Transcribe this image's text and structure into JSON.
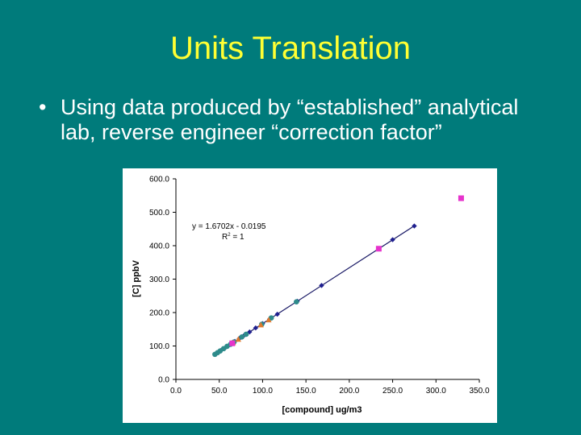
{
  "slide": {
    "title": "Units Translation",
    "bullets": [
      "Using data produced by “established” analytical lab, reverse engineer “correction factor”"
    ],
    "bullet_symbol": "•",
    "colors": {
      "background": "#007b7b",
      "title": "#ffff33",
      "text": "#ffffff"
    }
  },
  "chart_data": {
    "type": "scatter",
    "xlabel": "[compound] ug/m3",
    "ylabel": "[C] ppbV",
    "xlim": [
      0,
      350
    ],
    "ylim": [
      0,
      600
    ],
    "x_ticks": [
      "0.0",
      "50.0",
      "100.0",
      "150.0",
      "200.0",
      "250.0",
      "300.0",
      "350.0"
    ],
    "y_ticks": [
      "0.0",
      "100.0",
      "200.0",
      "300.0",
      "400.0",
      "500.0",
      "600.0"
    ],
    "grid": false,
    "trendline": {
      "slope": 1.6702,
      "intercept": -0.0195,
      "x_range": [
        44,
        275
      ],
      "color": "#1a1a66"
    },
    "annotation": {
      "equation": "y = 1.6702x - 0.0195",
      "r2_prefix": "R",
      "r2_sup": "2",
      "r2_value": " = 1"
    },
    "series": [
      {
        "marker": "diamond",
        "color": "#1f1f8f",
        "x": [
          46,
          52,
          57,
          62,
          68,
          73,
          78,
          85,
          92,
          100,
          108,
          117,
          140,
          168,
          250,
          275
        ],
        "y": [
          77,
          87,
          95,
          104,
          114,
          122,
          130,
          142,
          154,
          167,
          180,
          195,
          234,
          281,
          418,
          459
        ]
      },
      {
        "marker": "circle",
        "color": "#2e8b8b",
        "x": [
          45,
          48,
          51,
          55,
          59,
          63,
          67,
          76,
          81,
          99,
          110,
          139
        ],
        "y": [
          75,
          80,
          85,
          92,
          99,
          105,
          112,
          127,
          135,
          165,
          184,
          232
        ]
      },
      {
        "marker": "triangle",
        "color": "#e07a2e",
        "x": [
          66,
          72,
          98,
          107
        ],
        "y": [
          110,
          120,
          163,
          178
        ]
      },
      {
        "marker": "square",
        "color": "#e633cc",
        "x": [
          65,
          234,
          329
        ],
        "y": [
          108,
          391,
          542
        ]
      }
    ]
  }
}
